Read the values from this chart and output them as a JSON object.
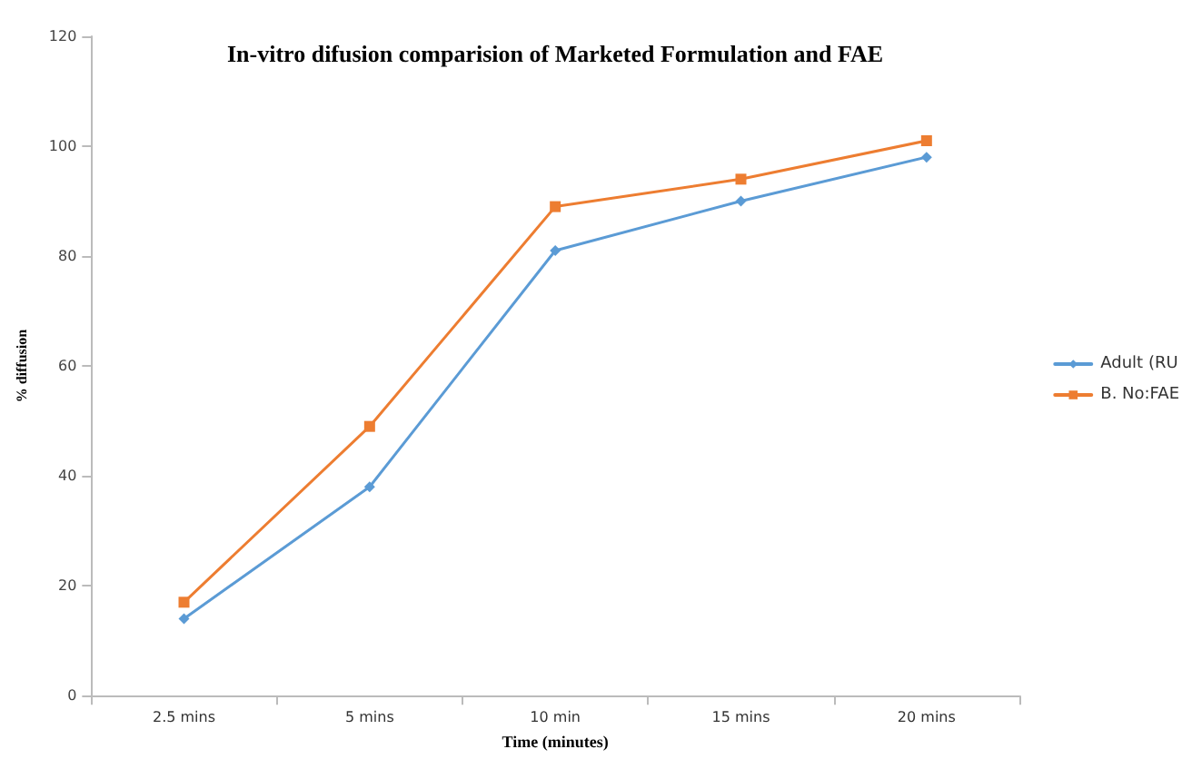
{
  "chart_data": {
    "type": "line",
    "title": "In-vitro difusion comparision of Marketed Formulation and FAE",
    "xlabel": "Time (minutes)",
    "ylabel": "% diffusion",
    "categories": [
      "2.5 mins",
      "5 mins",
      "10 min",
      "15 mins",
      "20 mins"
    ],
    "series": [
      {
        "name": "Adult (RU",
        "color": "#5b9bd5",
        "marker": "diamond",
        "values": [
          14,
          38,
          81,
          90,
          98
        ]
      },
      {
        "name": "B. No:FAE",
        "color": "#ed7d31",
        "marker": "square",
        "values": [
          17,
          49,
          89,
          94,
          101
        ]
      }
    ],
    "ylim": [
      0,
      120
    ],
    "yticks": [
      0,
      20,
      40,
      60,
      80,
      100,
      120
    ],
    "grid": false,
    "legend": "right"
  }
}
